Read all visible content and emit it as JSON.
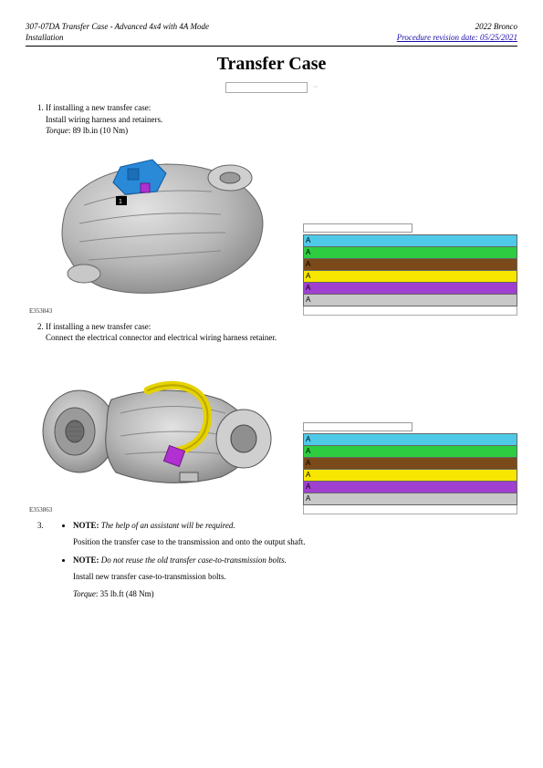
{
  "header": {
    "left_line1": "307-07DA Transfer Case - Advanced 4x4 with 4A Mode",
    "left_line2": "Installation",
    "right_line1": "2022 Bronco",
    "right_link": "Procedure revision date: 05/25/2021"
  },
  "title": "Transfer Case",
  "steps": {
    "s1": {
      "cond": "If installing a new transfer case:",
      "text": "Install wiring harness and retainers.",
      "torque_label": "Torque",
      "torque_val": ": 89 lb.in (10 Nm)"
    },
    "s2": {
      "cond": "If installing a new transfer case:",
      "text": "Connect the electrical connector and electrical wiring harness retainer."
    },
    "s3": {
      "note1_label": "NOTE:",
      "note1_text": " The help of an assistant will be required.",
      "note1_body": "Position the transfer case to the transmission and onto the output shaft.",
      "note2_label": "NOTE:",
      "note2_text": " Do not reuse the old transfer case-to-transmission bolts.",
      "note2_body": "Install new transfer case-to-transmission bolts.",
      "torque_label": "Torque",
      "torque_val": ": 35 lb.ft (48 Nm)"
    }
  },
  "figures": {
    "f1": {
      "caption": "E353843"
    },
    "f2": {
      "caption": "E353863"
    }
  },
  "legend": {
    "marker": "A",
    "rows": [
      {
        "color": "#4fc9e8"
      },
      {
        "color": "#2ecc40"
      },
      {
        "color": "#7a4a1a"
      },
      {
        "color": "#f7e600"
      },
      {
        "color": "#a040d0"
      },
      {
        "color": "#c8c8c8"
      }
    ]
  },
  "style": {
    "case_body": "#b8b8b8",
    "case_shadow": "#8a8a8a",
    "case_hi": "#dcdcdc",
    "actuator_blue": "#2a8ad8",
    "actuator_purple": "#b030d0",
    "harness_yellow": "#e6d200"
  }
}
